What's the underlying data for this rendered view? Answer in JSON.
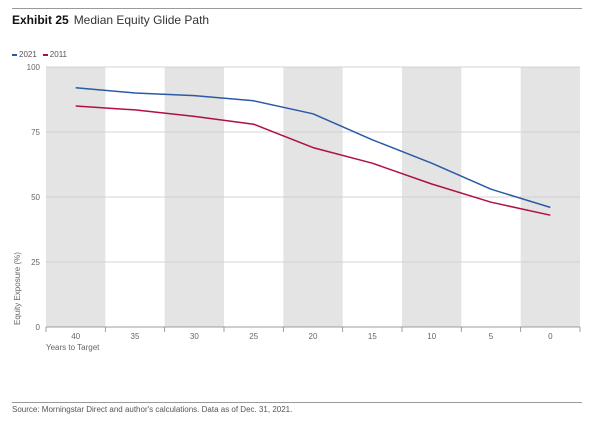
{
  "header": {
    "exhibit_label": "Exhibit 25",
    "title": "Median Equity Glide Path"
  },
  "colors": {
    "series_2021": "#2a5aa7",
    "series_2011": "#b0103f",
    "band": "#e4e4e4"
  },
  "chart_data": {
    "type": "line",
    "title": "Median Equity Glide Path",
    "xlabel": "Years to Target",
    "ylabel": "Equity Exposure (%)",
    "x": [
      40,
      35,
      30,
      25,
      20,
      15,
      10,
      5,
      0
    ],
    "ylim": [
      0,
      100
    ],
    "yticks": [
      0,
      25,
      50,
      75,
      100
    ],
    "legend_position": "top-left",
    "grid": "horizontal",
    "series": [
      {
        "name": "2021",
        "values": [
          92,
          90,
          89,
          87,
          82,
          72,
          63,
          53,
          46
        ]
      },
      {
        "name": "2011",
        "values": [
          85,
          83.5,
          81,
          78,
          69,
          63,
          55,
          48,
          43
        ]
      }
    ]
  },
  "footer": {
    "source": "Source: Morningstar Direct and author's calculations. Data as of Dec. 31, 2021."
  }
}
